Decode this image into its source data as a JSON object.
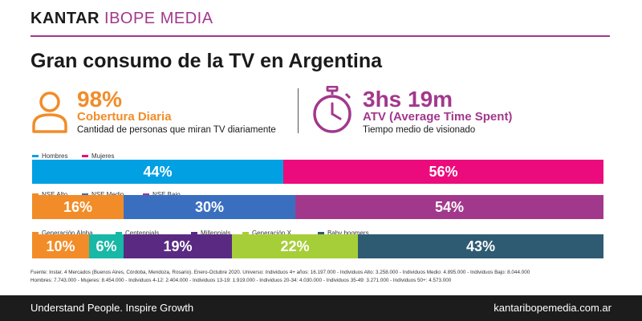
{
  "brand": {
    "part1": "KANTAR",
    "part2": "IBOPE MEDIA"
  },
  "headline": "Gran consumo de la TV en Argentina",
  "kpis": [
    {
      "icon": "person-icon",
      "value": "98%",
      "label": "Cobertura Diaria",
      "description": "Cantidad de personas que miran TV diariamente",
      "color": "#f28c28"
    },
    {
      "icon": "stopwatch-icon",
      "value": "3hs 19m",
      "label": "ATV (Average Time Spent)",
      "description": "Tiempo medio de visionado",
      "color": "#a2388c"
    }
  ],
  "chart_data": [
    {
      "type": "bar",
      "orientation": "horizontal-stacked-100",
      "series": [
        {
          "name": "Hombres",
          "value": 44,
          "label": "44%",
          "color": "#00a0e3"
        },
        {
          "name": "Mujeres",
          "value": 56,
          "label": "56%",
          "color": "#ec0b7c"
        }
      ]
    },
    {
      "type": "bar",
      "orientation": "horizontal-stacked-100",
      "series": [
        {
          "name": "NSE Alto",
          "value": 16,
          "label": "16%",
          "color": "#f28c28"
        },
        {
          "name": "NSE Medio",
          "value": 30,
          "label": "30%",
          "color": "#3a6fc0"
        },
        {
          "name": "NSE Bajo",
          "value": 54,
          "label": "54%",
          "color": "#a2388c"
        }
      ]
    },
    {
      "type": "bar",
      "orientation": "horizontal-stacked-100",
      "series": [
        {
          "name": "Generación Alpha",
          "value": 10,
          "label": "10%",
          "color": "#f28c28"
        },
        {
          "name": "Centennials",
          "value": 6,
          "label": "6%",
          "color": "#17b8a6"
        },
        {
          "name": "Millennials",
          "value": 19,
          "label": "19%",
          "color": "#5a2a82"
        },
        {
          "name": "Generación X",
          "value": 22,
          "label": "22%",
          "color": "#a6ce39"
        },
        {
          "name": "Baby boomers",
          "value": 43,
          "label": "43%",
          "color": "#2e5b72"
        }
      ]
    }
  ],
  "source_lines": [
    "Fuente: Instar. 4 Mercados (Buenos Aires, Córdoba, Mendoza, Rosario). Enero-Octubre 2020. Universo: Individuos 4+ años: 16.197.000 - Individuos Alto: 3.258.000 - Individuos Medio: 4.895.000 - Individuos Bajo: 8.044.000",
    "Hombres: 7.743.000 - Mujeres: 8.454.000 - Individuos 4-12: 2.404.000 - Individuos 13-19: 1.919.000 - Individuos 20-34: 4.030.000 - Individuos 35-49: 3.271.000 - Individuos 50+: 4.573.000"
  ],
  "footer": {
    "tagline": "Understand People. Inspire Growth",
    "url": "kantaribopemedia.com.ar"
  }
}
